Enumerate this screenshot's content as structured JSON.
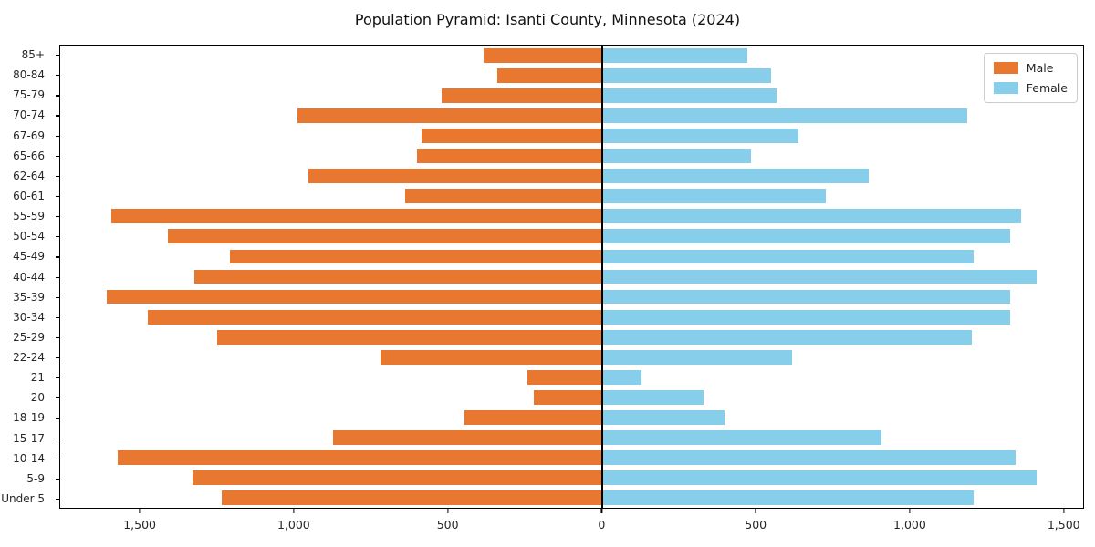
{
  "title": "Population Pyramid: Isanti County, Minnesota (2024)",
  "legend": {
    "male_label": "Male",
    "female_label": "Female"
  },
  "colors": {
    "male": "#E8782F",
    "female": "#87CEEB",
    "axis": "#000000",
    "text": "#262626"
  },
  "chart_data": {
    "type": "bar",
    "subtype": "population-pyramid",
    "orientation": "horizontal",
    "title": "Population Pyramid: Isanti County, Minnesota (2024)",
    "xlabel": "",
    "ylabel": "",
    "grid": false,
    "legend_position": "upper right",
    "xlim": [
      -1761,
      1566
    ],
    "x_ticks": [
      -1500,
      -1000,
      -500,
      0,
      500,
      1000,
      1500
    ],
    "x_tick_labels": [
      "1,500",
      "1,000",
      "500",
      "0",
      "500",
      "1,000",
      "1,500"
    ],
    "categories_top_to_bottom": [
      "85+",
      "80-84",
      "75-79",
      "70-74",
      "67-69",
      "65-66",
      "62-64",
      "60-61",
      "55-59",
      "50-54",
      "45-49",
      "40-44",
      "35-39",
      "30-34",
      "25-29",
      "22-24",
      "21",
      "20",
      "18-19",
      "15-17",
      "10-14",
      "5-9",
      "Under 5"
    ],
    "series": [
      {
        "name": "Male",
        "side": "left",
        "color": "#E8782F",
        "values": [
          385,
          340,
          520,
          990,
          585,
          600,
          955,
          640,
          1595,
          1410,
          1210,
          1325,
          1610,
          1475,
          1250,
          720,
          240,
          220,
          445,
          875,
          1575,
          1330,
          1235
        ]
      },
      {
        "name": "Female",
        "side": "right",
        "color": "#87CEEB",
        "values": [
          475,
          550,
          570,
          1190,
          640,
          485,
          870,
          730,
          1365,
          1330,
          1210,
          1415,
          1330,
          1330,
          1205,
          620,
          130,
          330,
          400,
          910,
          1345,
          1415,
          1210
        ]
      }
    ]
  }
}
